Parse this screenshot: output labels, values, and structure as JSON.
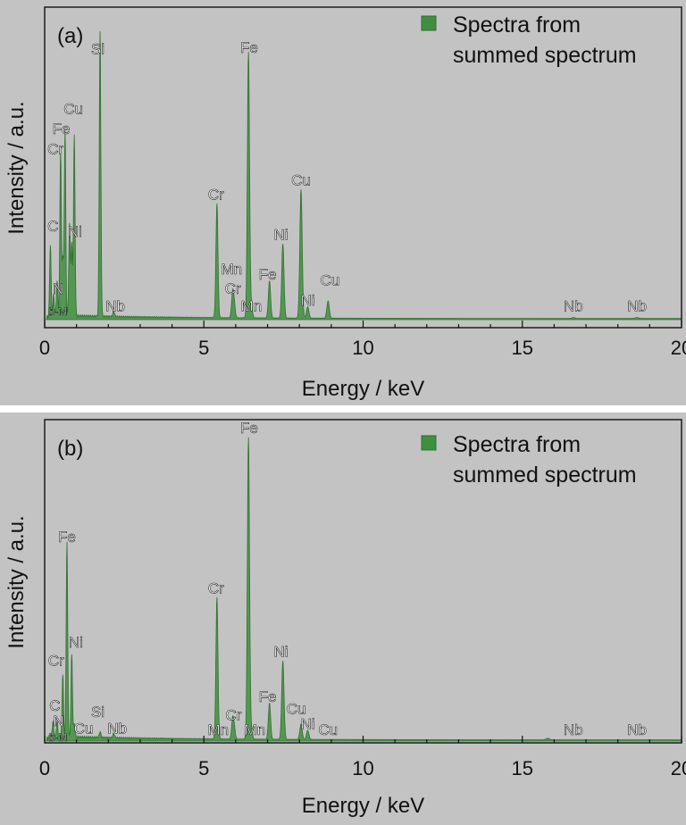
{
  "chart_data": [
    {
      "type": "line",
      "panel_label": "(a)",
      "xlabel": "Energy / keV",
      "ylabel": "Intensity / a.u.",
      "xlim": [
        0,
        20
      ],
      "xticks": [
        0,
        5,
        10,
        15,
        20
      ],
      "grid": false,
      "legend": {
        "position": "top-right",
        "entries": [
          "Spectra from",
          "summed spectrum"
        ]
      },
      "series_color": "#3f8f3f",
      "peaks": [
        {
          "energy": 0.18,
          "height": 0.25
        },
        {
          "energy": 0.28,
          "height": 0.07
        },
        {
          "energy": 0.39,
          "height": 0.12
        },
        {
          "energy": 0.5,
          "height": 0.58
        },
        {
          "energy": 0.57,
          "height": 0.2
        },
        {
          "energy": 0.64,
          "height": 0.65
        },
        {
          "energy": 0.78,
          "height": 0.32
        },
        {
          "energy": 0.85,
          "height": 0.25
        },
        {
          "energy": 0.93,
          "height": 0.63
        },
        {
          "energy": 1.74,
          "height": 1.0
        },
        {
          "energy": 2.17,
          "height": 0.02
        },
        {
          "energy": 5.41,
          "height": 0.4
        },
        {
          "energy": 5.9,
          "height": 0.08
        },
        {
          "energy": 5.95,
          "height": 0.05
        },
        {
          "energy": 6.4,
          "height": 0.93
        },
        {
          "energy": 6.49,
          "height": 0.04
        },
        {
          "energy": 7.06,
          "height": 0.13
        },
        {
          "energy": 7.48,
          "height": 0.26
        },
        {
          "energy": 8.05,
          "height": 0.45
        },
        {
          "energy": 8.26,
          "height": 0.04
        },
        {
          "energy": 8.9,
          "height": 0.06
        },
        {
          "energy": 16.6,
          "height": 0.003
        },
        {
          "energy": 18.6,
          "height": 0.003
        }
      ],
      "annotations": [
        {
          "text": "Si",
          "x": 1.67,
          "y": 0.93,
          "size": "large"
        },
        {
          "text": "Fe",
          "x": 6.42,
          "y": 0.935,
          "size": "large"
        },
        {
          "text": "Cu",
          "x": 0.9,
          "y": 0.72,
          "size": "large"
        },
        {
          "text": "Fe",
          "x": 0.52,
          "y": 0.65,
          "size": "large"
        },
        {
          "text": "Cr",
          "x": 0.34,
          "y": 0.58,
          "size": "large"
        },
        {
          "text": "C",
          "x": 0.26,
          "y": 0.31,
          "size": "large"
        },
        {
          "text": "Ni",
          "x": 0.95,
          "y": 0.29,
          "size": "large"
        },
        {
          "text": "N",
          "x": 0.42,
          "y": 0.09,
          "size": "large"
        },
        {
          "text": "b-M",
          "x": 0.42,
          "y": 0.015,
          "size": "small"
        },
        {
          "text": "Nb",
          "x": 2.22,
          "y": 0.03,
          "size": "large"
        },
        {
          "text": "Cr",
          "x": 5.38,
          "y": 0.42,
          "size": "large"
        },
        {
          "text": "Mn",
          "x": 5.87,
          "y": 0.16,
          "size": "large"
        },
        {
          "text": "Cr",
          "x": 5.91,
          "y": 0.09,
          "size": "large"
        },
        {
          "text": "Mn",
          "x": 6.49,
          "y": 0.03,
          "size": "large"
        },
        {
          "text": "Fe",
          "x": 7.0,
          "y": 0.14,
          "size": "large"
        },
        {
          "text": "Ni",
          "x": 7.42,
          "y": 0.28,
          "size": "large"
        },
        {
          "text": "Cu",
          "x": 8.05,
          "y": 0.47,
          "size": "large"
        },
        {
          "text": "Ni",
          "x": 8.26,
          "y": 0.05,
          "size": "large"
        },
        {
          "text": "Cu",
          "x": 8.96,
          "y": 0.12,
          "size": "large"
        },
        {
          "text": "Nb",
          "x": 16.6,
          "y": 0.03,
          "size": "large"
        },
        {
          "text": "Nb",
          "x": 18.6,
          "y": 0.03,
          "size": "large"
        }
      ]
    },
    {
      "type": "line",
      "panel_label": "(b)",
      "xlabel": "Energy / keV",
      "ylabel": "Intensity / a.u.",
      "xlim": [
        0,
        20
      ],
      "xticks": [
        0,
        5,
        10,
        15,
        20
      ],
      "grid": false,
      "legend": {
        "position": "top-right",
        "entries": [
          "Spectra from",
          "summed spectrum"
        ]
      },
      "series_color": "#3f8f3f",
      "peaks": [
        {
          "energy": 0.26,
          "height": 0.05
        },
        {
          "energy": 0.39,
          "height": 0.05
        },
        {
          "energy": 0.57,
          "height": 0.21
        },
        {
          "energy": 0.7,
          "height": 0.65
        },
        {
          "energy": 0.85,
          "height": 0.27
        },
        {
          "energy": 0.93,
          "height": 0.04
        },
        {
          "energy": 1.74,
          "height": 0.02
        },
        {
          "energy": 2.17,
          "height": 0.015
        },
        {
          "energy": 5.41,
          "height": 0.47
        },
        {
          "energy": 5.9,
          "height": 0.06
        },
        {
          "energy": 5.95,
          "height": 0.04
        },
        {
          "energy": 6.4,
          "height": 1.0
        },
        {
          "energy": 6.49,
          "height": 0.03
        },
        {
          "energy": 7.06,
          "height": 0.12
        },
        {
          "energy": 7.48,
          "height": 0.26
        },
        {
          "energy": 8.05,
          "height": 0.05
        },
        {
          "energy": 8.26,
          "height": 0.03
        },
        {
          "energy": 15.8,
          "height": 0.005
        }
      ],
      "annotations": [
        {
          "text": "Fe",
          "x": 6.42,
          "y": 1.02,
          "size": "large"
        },
        {
          "text": "Fe",
          "x": 0.7,
          "y": 0.66,
          "size": "large"
        },
        {
          "text": "Ni",
          "x": 0.98,
          "y": 0.31,
          "size": "large"
        },
        {
          "text": "Cr",
          "x": 0.36,
          "y": 0.25,
          "size": "large"
        },
        {
          "text": "C",
          "x": 0.32,
          "y": 0.1,
          "size": "large"
        },
        {
          "text": "N",
          "x": 0.44,
          "y": 0.05,
          "size": "large"
        },
        {
          "text": "b-M",
          "x": 0.42,
          "y": 0.0,
          "size": "small"
        },
        {
          "text": "Cu",
          "x": 1.22,
          "y": 0.025,
          "size": "large"
        },
        {
          "text": "Si",
          "x": 1.67,
          "y": 0.08,
          "size": "large"
        },
        {
          "text": "Nb",
          "x": 2.28,
          "y": 0.025,
          "size": "large"
        },
        {
          "text": "Cr",
          "x": 5.38,
          "y": 0.49,
          "size": "large"
        },
        {
          "text": "Mn",
          "x": 5.45,
          "y": 0.02,
          "size": "large"
        },
        {
          "text": "Cr",
          "x": 5.93,
          "y": 0.07,
          "size": "large"
        },
        {
          "text": "Mn",
          "x": 6.6,
          "y": 0.02,
          "size": "large"
        },
        {
          "text": "Fe",
          "x": 7.0,
          "y": 0.13,
          "size": "large"
        },
        {
          "text": "Ni",
          "x": 7.42,
          "y": 0.28,
          "size": "large"
        },
        {
          "text": "Cu",
          "x": 7.9,
          "y": 0.09,
          "size": "large"
        },
        {
          "text": "Ni",
          "x": 8.26,
          "y": 0.04,
          "size": "large"
        },
        {
          "text": "Cu",
          "x": 8.9,
          "y": 0.02,
          "size": "large"
        },
        {
          "text": "Nb",
          "x": 16.6,
          "y": 0.02,
          "size": "large"
        },
        {
          "text": "Nb",
          "x": 18.6,
          "y": 0.02,
          "size": "large"
        }
      ]
    }
  ]
}
